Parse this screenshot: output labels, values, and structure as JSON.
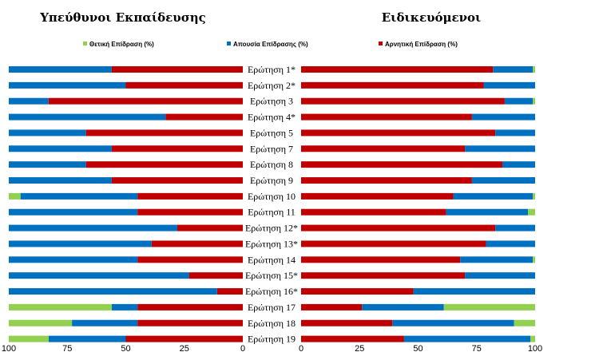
{
  "chart_data": [
    {
      "type": "bar",
      "orientation": "horizontal-stacked",
      "title": "Υπεύθυνοι Εκπαίδευσης",
      "categories": [
        "Ερώτηση 1*",
        "Ερώτηση 2*",
        "Ερώτηση 3",
        "Ερώτηση 4*",
        "Ερώτηση 5",
        "Ερώτηση 7",
        "Ερώτηση 8",
        "Ερώτηση 9",
        "Ερώτηση 10",
        "Ερώτηση 11",
        "Ερώτηση 12*",
        "Ερώτηση 13*",
        "Ερώτηση 14",
        "Ερώτηση 15*",
        "Ερώτηση 16*",
        "Ερώτηση 17",
        "Ερώτηση 18",
        "Ερώτηση 19"
      ],
      "series": [
        {
          "name": "Αρνητική Επίδραση (%)",
          "values": [
            56,
            50,
            83,
            33,
            67,
            56,
            67,
            56,
            45,
            45,
            28,
            39,
            45,
            23,
            11,
            45,
            45,
            50
          ]
        },
        {
          "name": "Απουσία Επίδρασης (%)",
          "values": [
            44,
            50,
            17,
            67,
            33,
            44,
            33,
            44,
            50,
            55,
            72,
            61,
            55,
            77,
            89,
            11,
            28,
            33
          ]
        },
        {
          "name": "Θετική Επίδραση (%)",
          "values": [
            0,
            0,
            0,
            0,
            0,
            0,
            0,
            0,
            5,
            0,
            0,
            0,
            0,
            0,
            0,
            44,
            27,
            17
          ]
        }
      ],
      "xlim": [
        100,
        0
      ],
      "xticks": [
        "100",
        "75",
        "50",
        "25",
        "0"
      ]
    },
    {
      "type": "bar",
      "orientation": "horizontal-stacked",
      "title": "Ειδικευόμενοι",
      "categories": [
        "Ερώτηση 1*",
        "Ερώτηση 2*",
        "Ερώτηση 3",
        "Ερώτηση 4*",
        "Ερώτηση 5",
        "Ερώτηση 7",
        "Ερώτηση 8",
        "Ερώτηση 9",
        "Ερώτηση 10",
        "Ερώτηση 11",
        "Ερώτηση 12*",
        "Ερώτηση 13*",
        "Ερώτηση 14",
        "Ερώτηση 15*",
        "Ερώτηση 16*",
        "Ερώτηση 17",
        "Ερώτηση 18",
        "Ερώτηση 19"
      ],
      "series": [
        {
          "name": "Αρνητική Επίδραση (%)",
          "values": [
            82,
            78,
            87,
            73,
            83,
            70,
            86,
            73,
            65,
            62,
            83,
            79,
            68,
            70,
            48,
            26,
            39,
            44
          ]
        },
        {
          "name": "Απουσία Επίδρασης (%)",
          "values": [
            17,
            22,
            12,
            27,
            17,
            30,
            14,
            27,
            34,
            35,
            17,
            21,
            31,
            30,
            52,
            35,
            52,
            54
          ]
        },
        {
          "name": "Θετική Επίδραση (%)",
          "values": [
            1,
            0,
            1,
            0,
            0,
            0,
            0,
            0,
            1,
            3,
            0,
            0,
            1,
            0,
            0,
            39,
            9,
            2
          ]
        }
      ],
      "xlim": [
        0,
        100
      ],
      "xticks": [
        "0",
        "25",
        "50",
        "75",
        "100"
      ]
    }
  ],
  "legend": [
    {
      "label": "Θετική Επίδραση (%)",
      "color": "#92d050"
    },
    {
      "label": "Απουσία Επίδρασης (%)",
      "color": "#0070c0"
    },
    {
      "label": "Αρνητική Επίδραση (%)",
      "color": "#c00000"
    }
  ],
  "colors": {
    "positive": "#92d050",
    "absence": "#0070c0",
    "negative": "#c00000"
  }
}
